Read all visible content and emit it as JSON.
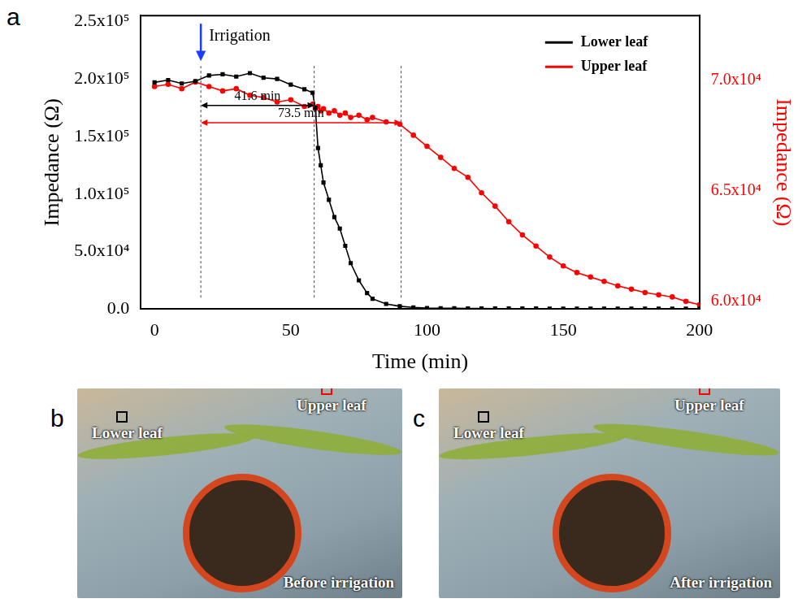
{
  "chart_data": {
    "type": "line",
    "panel": "a",
    "x_label": "Time (min)",
    "y_label": "Impedance (Ω)",
    "y2_label": "Impedance (Ω)",
    "x": [
      0,
      5,
      10,
      15,
      20,
      25,
      30,
      35,
      40,
      45,
      50,
      55,
      58,
      59,
      60,
      61,
      62,
      64,
      66,
      68,
      70,
      72,
      75,
      78,
      80,
      85,
      90,
      95,
      100,
      105,
      110,
      115,
      120,
      125,
      130,
      135,
      140,
      145,
      150,
      155,
      160,
      165,
      170,
      175,
      180,
      185,
      190,
      195,
      200
    ],
    "series": [
      {
        "name": "Lower leaf",
        "color": "#000000",
        "marker": "square",
        "line_style": "solid",
        "values": [
          197000,
          199000,
          196000,
          198000,
          203000,
          204000,
          202000,
          205000,
          201000,
          200000,
          195000,
          191000,
          188000,
          175000,
          140000,
          125000,
          110000,
          95000,
          80000,
          70000,
          55000,
          40000,
          25000,
          14000,
          9000,
          4500,
          2500,
          1500,
          1000,
          800,
          700,
          600,
          600,
          500,
          500,
          500,
          500,
          450,
          450,
          450,
          400,
          400,
          400,
          400,
          400,
          400,
          400,
          400,
          400
        ]
      },
      {
        "name": "Upper leaf",
        "color": "#ff0000",
        "marker": "circle",
        "line_style": "solid",
        "axis": "y2",
        "values": [
          69700,
          69800,
          69600,
          69900,
          69700,
          69500,
          69600,
          69300,
          69200,
          69000,
          69100,
          68800,
          68900,
          68700,
          68800,
          68600,
          68700,
          68500,
          68600,
          68400,
          68500,
          68300,
          68400,
          68200,
          68300,
          68100,
          68000,
          67500,
          67000,
          66500,
          66000,
          65600,
          64900,
          64300,
          63600,
          63000,
          62500,
          62000,
          61600,
          61300,
          61100,
          60900,
          60700,
          60550,
          60400,
          60300,
          60200,
          60000,
          59850
        ]
      }
    ],
    "xlim": [
      -5,
      200
    ],
    "xticks": [
      0,
      50,
      100,
      150,
      200
    ],
    "ylim": [
      0,
      255000
    ],
    "yticks": [
      {
        "value": 0,
        "label": "0.0"
      },
      {
        "value": 50000,
        "label": "5.0x10⁴"
      },
      {
        "value": 100000,
        "label": "1.0x10⁵"
      },
      {
        "value": 150000,
        "label": "1.5x10⁵"
      },
      {
        "value": 200000,
        "label": "2.0x10⁵"
      },
      {
        "value": 250000,
        "label": "2.5x10⁵"
      }
    ],
    "y2lim": [
      59650,
      72900
    ],
    "y2ticks": [
      {
        "value": 60000,
        "label": "6.0x10⁴"
      },
      {
        "value": 65000,
        "label": "6.5x10⁴"
      },
      {
        "value": 70000,
        "label": "7.0x10⁴"
      }
    ],
    "grid": false,
    "legend": "upper right",
    "annotations": {
      "irrigation": {
        "text": "Irrigation",
        "x": 17,
        "color": "#1a3cff"
      },
      "vlines": [
        17,
        58.6,
        90.5
      ],
      "spans": [
        {
          "text": "41.6 min",
          "from": 17,
          "to": 58.6,
          "y": 177000,
          "color": "#000000"
        },
        {
          "text": "73.5 min",
          "from": 17,
          "to": 90.5,
          "y": 162000,
          "color": "#ff0000"
        }
      ]
    }
  },
  "photos": [
    {
      "panel": "b",
      "labels": [
        "Lower leaf",
        "Upper leaf"
      ],
      "caption": "Before irrigation"
    },
    {
      "panel": "c",
      "labels": [
        "Lower leaf",
        "Upper leaf"
      ],
      "caption": "After irrigation"
    }
  ]
}
